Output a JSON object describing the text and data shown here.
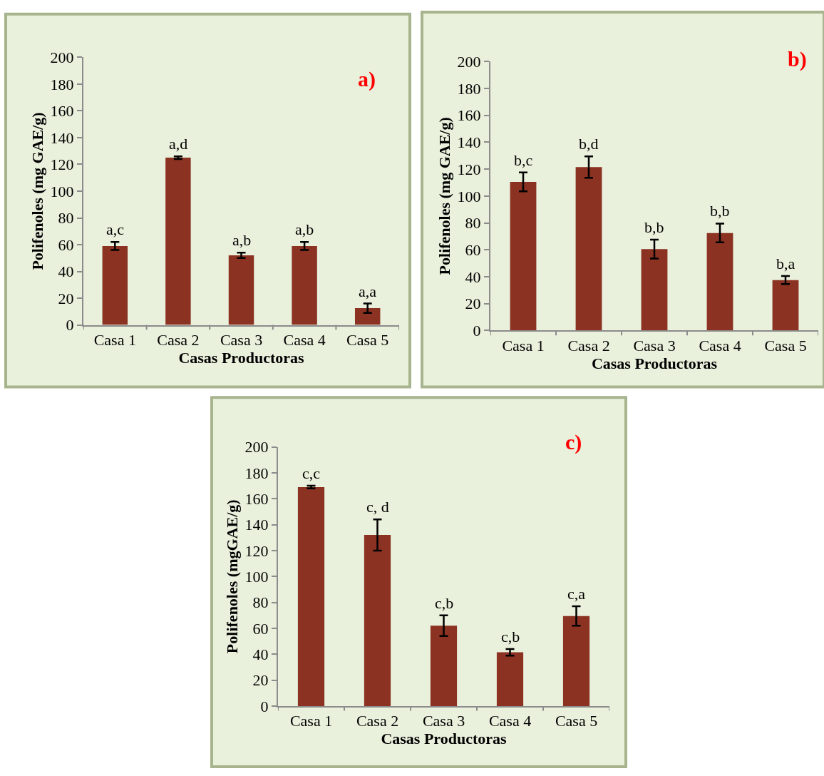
{
  "chart_data": [
    {
      "type": "bar",
      "title": "a)",
      "xlabel": "Casas Productoras",
      "ylabel": "Polifenoles (mg GAE/g)",
      "categories": [
        "Casa 1",
        "Casa 2",
        "Casa 3",
        "Casa 4",
        "Casa 5"
      ],
      "values": [
        59,
        125,
        52,
        59,
        12.5
      ],
      "errors": [
        3,
        1,
        2,
        3,
        3.5
      ],
      "color": "#8b3222",
      "ylim": [
        0,
        200
      ],
      "yticks": [
        0,
        20,
        40,
        60,
        80,
        100,
        120,
        140,
        160,
        180,
        200
      ],
      "grid": false,
      "annotations": [
        {
          "text": "a,c",
          "x": "Casa 1",
          "y": 59
        },
        {
          "text": "a,d",
          "x": "Casa 2",
          "y": 125
        },
        {
          "text": "a,b",
          "x": "Casa 3",
          "y": 52
        },
        {
          "text": "a,b",
          "x": "Casa 4",
          "y": 59
        },
        {
          "text": "a,a",
          "x": "Casa 5",
          "y": 12.5
        }
      ]
    },
    {
      "type": "bar",
      "title": "b)",
      "xlabel": "Casas Productoras",
      "ylabel": "Polifenoles (mg GAE/g)",
      "categories": [
        "Casa 1",
        "Casa 2",
        "Casa 3",
        "Casa 4",
        "Casa 5"
      ],
      "values": [
        110.5,
        121.5,
        60.5,
        72.5,
        37.5
      ],
      "errors": [
        7,
        8,
        7,
        7,
        3
      ],
      "color": "#8b3222",
      "ylim": [
        0,
        200
      ],
      "yticks": [
        0,
        20,
        40,
        60,
        80,
        100,
        120,
        140,
        160,
        180,
        200
      ],
      "grid": false,
      "annotations": [
        {
          "text": "b,c",
          "x": "Casa 1",
          "y": 110.5
        },
        {
          "text": "b,d",
          "x": "Casa 2",
          "y": 121.5
        },
        {
          "text": "b,b",
          "x": "Casa 3",
          "y": 60.5
        },
        {
          "text": "b,b",
          "x": "Casa 4",
          "y": 72.5
        },
        {
          "text": "b,a",
          "x": "Casa 5",
          "y": 37.5
        }
      ]
    },
    {
      "type": "bar",
      "title": "c)",
      "xlabel": "Casas Productoras",
      "ylabel": "Polifenoles (mgGAE/g)",
      "categories": [
        "Casa 1",
        "Casa 2",
        "Casa 3",
        "Casa 4",
        "Casa 5"
      ],
      "values": [
        169,
        132,
        62,
        41.5,
        69.5
      ],
      "errors": [
        1,
        12,
        8,
        2.5,
        7.5
      ],
      "color": "#8b3222",
      "ylim": [
        0,
        200
      ],
      "yticks": [
        0,
        20,
        40,
        60,
        80,
        100,
        120,
        140,
        160,
        180,
        200
      ],
      "grid": false,
      "annotations": [
        {
          "text": "c,c",
          "x": "Casa 1",
          "y": 169
        },
        {
          "text": "c, d",
          "x": "Casa 2",
          "y": 132
        },
        {
          "text": "c,b",
          "x": "Casa 3",
          "y": 62
        },
        {
          "text": "c,b",
          "x": "Casa 4",
          "y": 41.5
        },
        {
          "text": "c,a",
          "x": "Casa 5",
          "y": 69.5
        }
      ]
    }
  ]
}
